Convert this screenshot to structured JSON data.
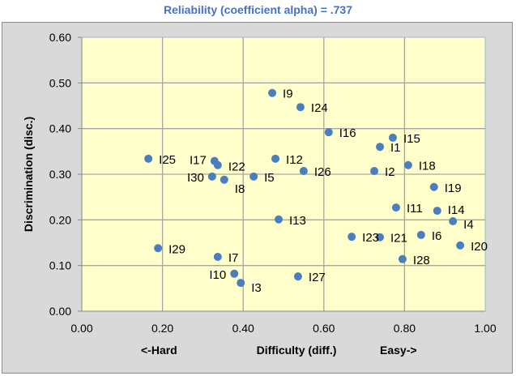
{
  "chart_data": {
    "type": "scatter",
    "title": "Reliability (coefficient alpha) =  .737",
    "xlabel": "Difficulty (diff.)",
    "xlabel_left": "<-Hard",
    "xlabel_right": "Easy->",
    "ylabel": "Discrimination (disc.)",
    "xlim": [
      0,
      1
    ],
    "ylim": [
      0,
      0.6
    ],
    "xticks": [
      "0.00",
      "0.20",
      "0.40",
      "0.60",
      "0.80",
      "1.00"
    ],
    "yticks": [
      "0.00",
      "0.10",
      "0.20",
      "0.30",
      "0.40",
      "0.50",
      "0.60"
    ],
    "grid": true,
    "marker_color": "#4a7ebf",
    "plot_bg": "#ffffcc",
    "points": [
      {
        "label": "I1",
        "x": 0.739,
        "y": 0.36
      },
      {
        "label": "I2",
        "x": 0.725,
        "y": 0.307
      },
      {
        "label": "I3",
        "x": 0.394,
        "y": 0.062
      },
      {
        "label": "I4",
        "x": 0.92,
        "y": 0.197
      },
      {
        "label": "I5",
        "x": 0.426,
        "y": 0.295
      },
      {
        "label": "I6",
        "x": 0.841,
        "y": 0.167
      },
      {
        "label": "I7",
        "x": 0.337,
        "y": 0.119
      },
      {
        "label": "I8",
        "x": 0.353,
        "y": 0.288
      },
      {
        "label": "I9",
        "x": 0.472,
        "y": 0.478
      },
      {
        "label": "I10",
        "x": 0.378,
        "y": 0.082
      },
      {
        "label": "I11",
        "x": 0.779,
        "y": 0.227
      },
      {
        "label": "I12",
        "x": 0.48,
        "y": 0.334
      },
      {
        "label": "I13",
        "x": 0.488,
        "y": 0.201
      },
      {
        "label": "I14",
        "x": 0.881,
        "y": 0.22
      },
      {
        "label": "I15",
        "x": 0.771,
        "y": 0.38
      },
      {
        "label": "I16",
        "x": 0.612,
        "y": 0.392
      },
      {
        "label": "I17",
        "x": 0.329,
        "y": 0.329
      },
      {
        "label": "I18",
        "x": 0.809,
        "y": 0.32
      },
      {
        "label": "I19",
        "x": 0.873,
        "y": 0.272
      },
      {
        "label": "I20",
        "x": 0.938,
        "y": 0.144
      },
      {
        "label": "I21",
        "x": 0.739,
        "y": 0.162
      },
      {
        "label": "I22",
        "x": 0.337,
        "y": 0.32
      },
      {
        "label": "I23",
        "x": 0.669,
        "y": 0.163
      },
      {
        "label": "I24",
        "x": 0.542,
        "y": 0.447
      },
      {
        "label": "I25",
        "x": 0.165,
        "y": 0.334
      },
      {
        "label": "I26",
        "x": 0.55,
        "y": 0.307
      },
      {
        "label": "I27",
        "x": 0.536,
        "y": 0.076
      },
      {
        "label": "I28",
        "x": 0.795,
        "y": 0.114
      },
      {
        "label": "I29",
        "x": 0.189,
        "y": 0.138
      },
      {
        "label": "I30",
        "x": 0.323,
        "y": 0.295
      }
    ]
  }
}
